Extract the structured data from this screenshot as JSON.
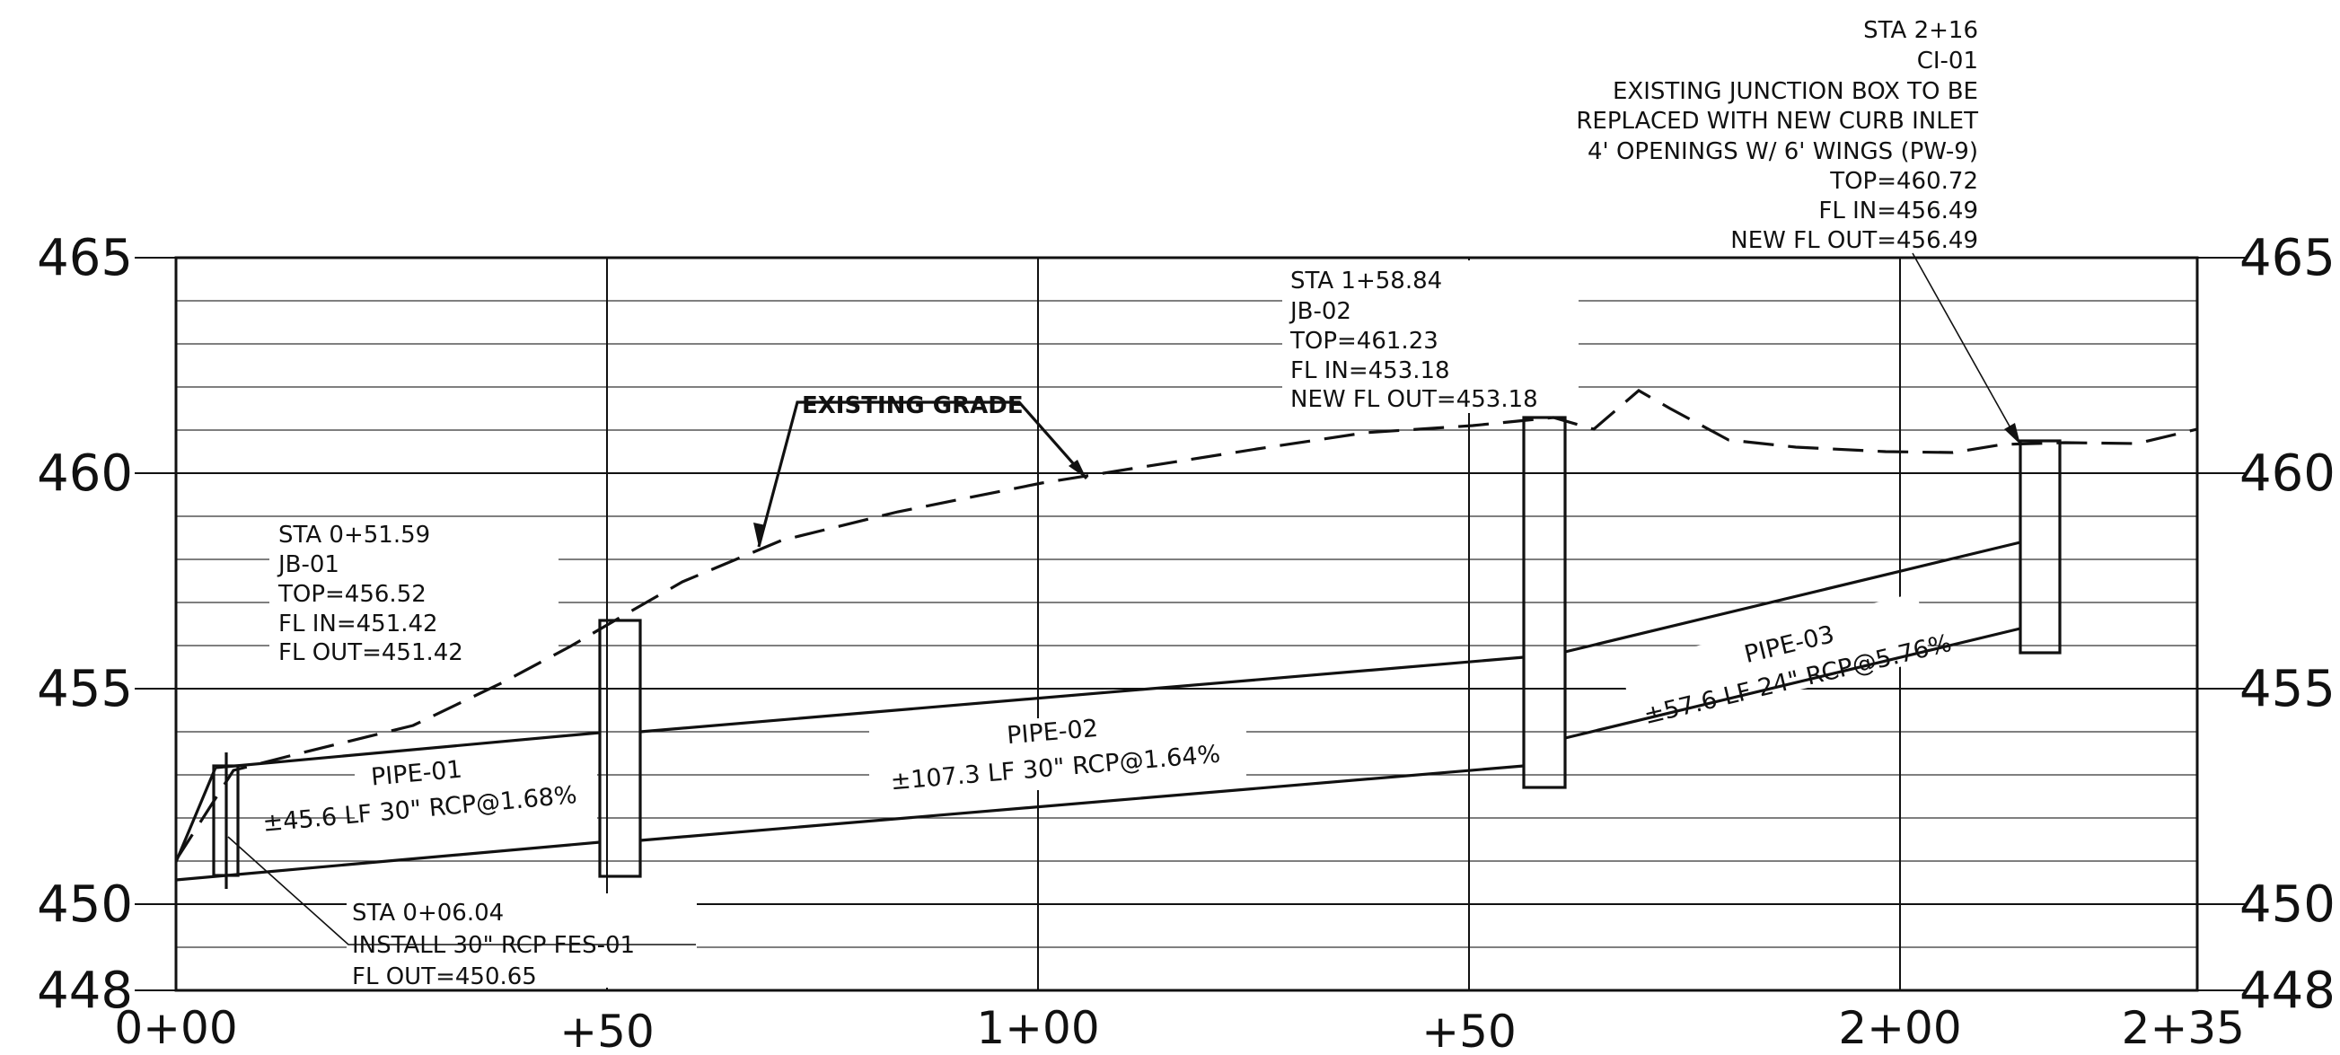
{
  "profile": {
    "elevation_axis": {
      "min": 448,
      "max": 465,
      "labels": [
        "465",
        "460",
        "455",
        "450",
        "448"
      ]
    },
    "station_axis": {
      "labels": [
        "0+00",
        "+50",
        "1+00",
        "+50",
        "2+00",
        "2+35"
      ]
    },
    "existing_grade_label": "EXISTING GRADE",
    "pipes": [
      {
        "id": "pipe-01",
        "name": "PIPE-01",
        "desc": "±45.6 LF 30\" RCP@1.68%"
      },
      {
        "id": "pipe-02",
        "name": "PIPE-02",
        "desc": "±107.3 LF 30\" RCP@1.64%"
      },
      {
        "id": "pipe-03",
        "name": "PIPE-03",
        "desc": "±57.6 LF 24\" RCP@5.76%"
      }
    ],
    "structure_notes": {
      "fes01": [
        "STA 0+06.04",
        "INSTALL 30\" RCP FES-01",
        "FL OUT=450.65"
      ],
      "jb01": [
        "STA 0+51.59",
        "JB-01",
        "TOP=456.52",
        "FL IN=451.42",
        "FL OUT=451.42"
      ],
      "jb02": [
        "STA 1+58.84",
        "JB-02",
        "TOP=461.23",
        "FL IN=453.18",
        "NEW FL OUT=453.18"
      ],
      "ci01": [
        "STA 2+16",
        "CI-01",
        "EXISTING JUNCTION BOX TO BE",
        "REPLACED WITH NEW CURB INLET",
        "4' OPENINGS W/ 6' WINGS (PW-9)",
        "TOP=460.72",
        "FL IN=456.49",
        "NEW FL OUT=456.49"
      ]
    }
  }
}
